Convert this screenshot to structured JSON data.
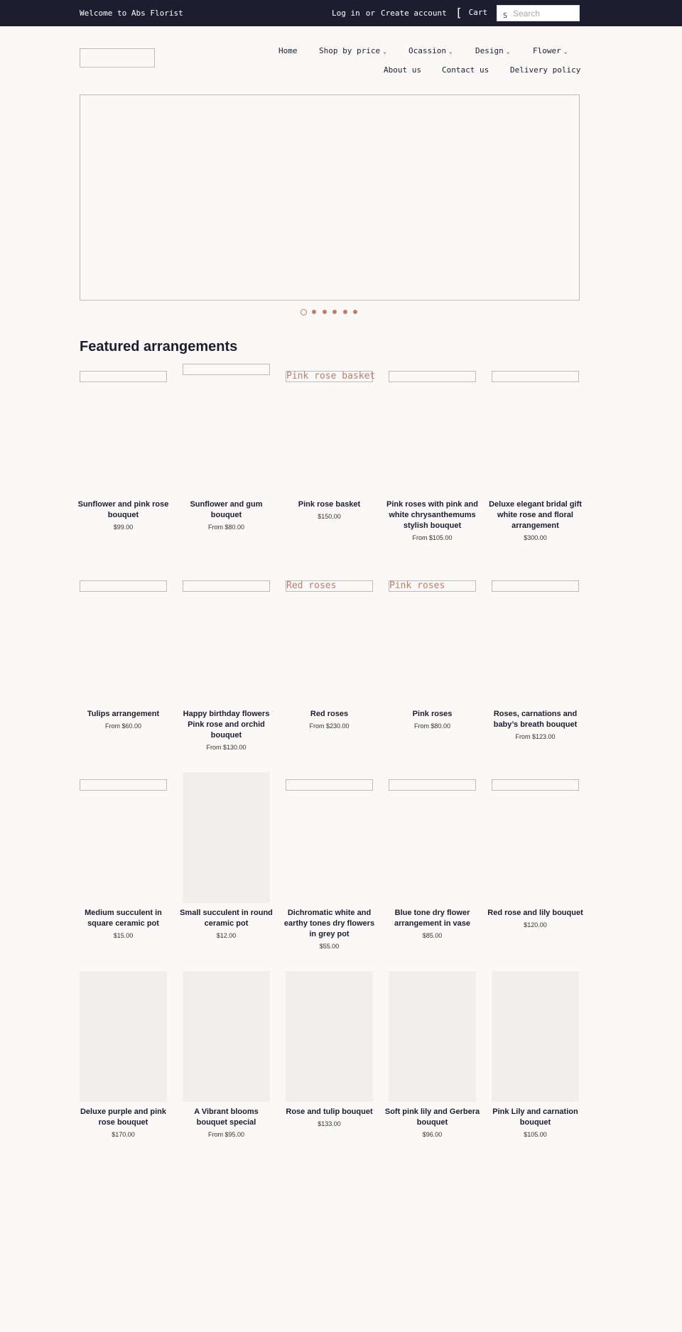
{
  "topbar": {
    "welcome": "Welcome to Abs Florist",
    "login": "Log in",
    "or": "or",
    "create_account": "Create account",
    "cart": "Cart",
    "search_placeholder": "Search",
    "search_icon_glyph": "S"
  },
  "nav": {
    "home": "Home",
    "shop_by_price": "Shop by price",
    "occasion": "Ocassion",
    "design": "Design",
    "flower": "Flower",
    "about": "About us",
    "contact": "Contact us",
    "delivery": "Delivery policy",
    "caret": "⌄"
  },
  "featured": {
    "title": "Featured arrangements"
  },
  "products": [
    {
      "title": "Sunflower and pink rose bouquet",
      "price": "$99.00",
      "img_alt": ""
    },
    {
      "title": "Sunflower and gum bouquet",
      "price": "From $80.00",
      "img_alt": ""
    },
    {
      "title": "Pink rose basket",
      "price": "$150.00",
      "img_alt": "Pink rose basket"
    },
    {
      "title": "Pink roses with pink and white chrysanthemums stylish bouquet",
      "price": "From $105.00",
      "img_alt": ""
    },
    {
      "title": "Deluxe elegant bridal gift white rose and floral arrangement",
      "price": "$300.00",
      "img_alt": ""
    },
    {
      "title": "Tulips arrangement",
      "price": "From $60.00",
      "img_alt": ""
    },
    {
      "title": "Happy birthday flowers Pink rose and orchid bouquet",
      "price": "From $130.00",
      "img_alt": ""
    },
    {
      "title": "Red roses",
      "price": "From $230.00",
      "img_alt": "Red roses"
    },
    {
      "title": "Pink roses",
      "price": "From $80.00",
      "img_alt": "Pink roses"
    },
    {
      "title": "Roses, carnations and baby’s breath bouquet",
      "price": "From $123.00",
      "img_alt": ""
    },
    {
      "title": "Medium succulent in square ceramic pot",
      "price": "$15.00",
      "img_alt": ""
    },
    {
      "title": "Small succulent in round ceramic pot",
      "price": "$12.00",
      "img_alt": ""
    },
    {
      "title": "Dichromatic white and earthy tones dry flowers in grey pot",
      "price": "$55.00",
      "img_alt": ""
    },
    {
      "title": "Blue tone dry flower arrangement in vase",
      "price": "$85.00",
      "img_alt": ""
    },
    {
      "title": "Red rose and lily bouquet",
      "price": "$120.00",
      "img_alt": ""
    },
    {
      "title": "Deluxe purple and pink rose bouquet",
      "price": "$170.00",
      "img_alt": ""
    },
    {
      "title": "A Vibrant blooms bouquet special",
      "price": "From $95.00",
      "img_alt": ""
    },
    {
      "title": "Rose and tulip bouquet",
      "price": "$133.00",
      "img_alt": ""
    },
    {
      "title": "Soft pink lily and Gerbera bouquet",
      "price": "$96.00",
      "img_alt": ""
    },
    {
      "title": "Pink Lily and carnation bouquet",
      "price": "$105.00",
      "img_alt": ""
    }
  ],
  "colors": {
    "header_bg": "#1c1d2f",
    "accent": "#c07c6a",
    "page_bg": "#faf9f7"
  }
}
